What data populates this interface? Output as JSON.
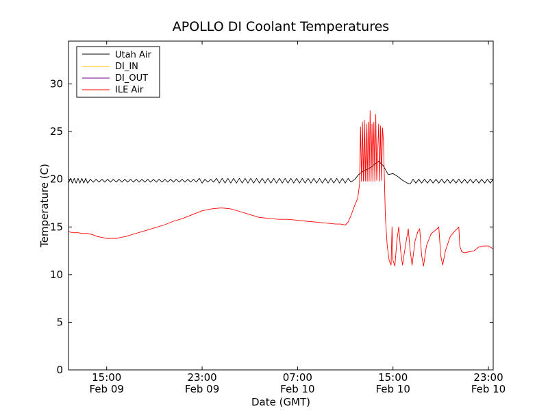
{
  "chart_data": {
    "type": "line",
    "title": "APOLLO DI Coolant Temperatures",
    "xlabel": "Date (GMT)",
    "ylabel": "Temperature (C)",
    "x_unit": "hours since Feb 09 11:00 GMT",
    "xlim": [
      0,
      44.5
    ],
    "ylim": [
      0,
      34.5
    ],
    "y_ticks": [
      0,
      5,
      10,
      15,
      20,
      25,
      30
    ],
    "x_ticks": [
      {
        "x": 4,
        "time": "15:00",
        "date": "Feb 09"
      },
      {
        "x": 14,
        "time": "23:00",
        "date": "Feb 09"
      },
      {
        "x": 24,
        "time": "07:00",
        "date": "Feb 10"
      },
      {
        "x": 34,
        "time": "15:00",
        "date": "Feb 10"
      },
      {
        "x": 44,
        "time": "23:00",
        "date": "Feb 10"
      }
    ],
    "legend_position": "top-left",
    "series": [
      {
        "name": "Utah Air",
        "color": "#000000",
        "points": [
          [
            0,
            19.6
          ],
          [
            0.2,
            20.1
          ],
          [
            0.4,
            19.6
          ],
          [
            0.6,
            20.1
          ],
          [
            0.8,
            19.6
          ],
          [
            1.0,
            20.1
          ],
          [
            1.2,
            19.6
          ],
          [
            1.4,
            20.1
          ],
          [
            1.6,
            19.6
          ],
          [
            1.8,
            20.1
          ],
          [
            2.0,
            19.6
          ],
          [
            2.3,
            20.0
          ],
          [
            2.6,
            19.7
          ],
          [
            2.9,
            20.0
          ],
          [
            3.2,
            19.7
          ],
          [
            3.5,
            20.0
          ],
          [
            3.8,
            19.7
          ],
          [
            4.1,
            20.0
          ],
          [
            4.4,
            19.7
          ],
          [
            4.7,
            20.0
          ],
          [
            5.0,
            19.7
          ],
          [
            5.3,
            20.0
          ],
          [
            5.6,
            19.7
          ],
          [
            5.9,
            20.0
          ],
          [
            6.2,
            19.7
          ],
          [
            6.5,
            20.0
          ],
          [
            6.8,
            19.7
          ],
          [
            7.1,
            20.0
          ],
          [
            7.4,
            19.7
          ],
          [
            7.7,
            20.0
          ],
          [
            8.0,
            19.7
          ],
          [
            8.3,
            20.0
          ],
          [
            8.6,
            19.7
          ],
          [
            8.9,
            20.0
          ],
          [
            9.2,
            19.7
          ],
          [
            9.5,
            20.0
          ],
          [
            9.8,
            19.7
          ],
          [
            10.1,
            20.0
          ],
          [
            10.4,
            19.7
          ],
          [
            10.7,
            20.0
          ],
          [
            11.0,
            19.7
          ],
          [
            11.3,
            20.0
          ],
          [
            11.6,
            19.7
          ],
          [
            11.9,
            20.0
          ],
          [
            12.2,
            19.7
          ],
          [
            12.5,
            20.0
          ],
          [
            12.8,
            19.7
          ],
          [
            13.1,
            20.0
          ],
          [
            13.4,
            19.7
          ],
          [
            13.7,
            20.1
          ],
          [
            14.0,
            19.6
          ],
          [
            14.3,
            20.0
          ],
          [
            14.6,
            19.7
          ],
          [
            14.9,
            20.0
          ],
          [
            15.2,
            19.7
          ],
          [
            15.5,
            20.1
          ],
          [
            15.8,
            19.6
          ],
          [
            16.1,
            20.1
          ],
          [
            16.4,
            19.6
          ],
          [
            16.7,
            20.1
          ],
          [
            17.0,
            19.6
          ],
          [
            17.3,
            20.1
          ],
          [
            17.6,
            19.6
          ],
          [
            17.9,
            20.1
          ],
          [
            18.2,
            19.6
          ],
          [
            18.5,
            20.1
          ],
          [
            18.8,
            19.6
          ],
          [
            19.1,
            20.1
          ],
          [
            19.4,
            19.6
          ],
          [
            19.7,
            20.1
          ],
          [
            20.0,
            19.6
          ],
          [
            20.3,
            20.1
          ],
          [
            20.6,
            19.6
          ],
          [
            20.9,
            20.1
          ],
          [
            21.2,
            19.6
          ],
          [
            21.5,
            20.1
          ],
          [
            21.8,
            19.6
          ],
          [
            22.1,
            20.1
          ],
          [
            22.4,
            19.6
          ],
          [
            22.7,
            20.1
          ],
          [
            23.0,
            19.6
          ],
          [
            23.3,
            20.1
          ],
          [
            23.6,
            19.6
          ],
          [
            23.9,
            20.1
          ],
          [
            24.2,
            19.6
          ],
          [
            24.5,
            20.1
          ],
          [
            24.8,
            19.6
          ],
          [
            25.1,
            20.1
          ],
          [
            25.4,
            19.6
          ],
          [
            25.7,
            20.1
          ],
          [
            26.0,
            19.6
          ],
          [
            26.3,
            20.1
          ],
          [
            26.6,
            19.6
          ],
          [
            26.9,
            20.1
          ],
          [
            27.2,
            19.6
          ],
          [
            27.5,
            20.1
          ],
          [
            27.8,
            19.6
          ],
          [
            28.1,
            20.1
          ],
          [
            28.4,
            19.6
          ],
          [
            28.7,
            20.1
          ],
          [
            29.0,
            19.6
          ],
          [
            29.3,
            20.1
          ],
          [
            29.6,
            19.7
          ],
          [
            30.0,
            20.0
          ],
          [
            30.4,
            20.5
          ],
          [
            30.8,
            20.8
          ],
          [
            31.2,
            21.0
          ],
          [
            31.6,
            21.2
          ],
          [
            32.0,
            21.5
          ],
          [
            32.5,
            21.9
          ],
          [
            33.0,
            21.4
          ],
          [
            33.5,
            20.5
          ],
          [
            34.0,
            20.6
          ],
          [
            34.5,
            20.3
          ],
          [
            35.0,
            19.9
          ],
          [
            35.5,
            19.6
          ],
          [
            35.8,
            19.5
          ],
          [
            36.1,
            20.0
          ],
          [
            36.4,
            19.6
          ],
          [
            36.7,
            20.0
          ],
          [
            37.0,
            19.6
          ],
          [
            37.3,
            20.0
          ],
          [
            37.6,
            19.6
          ],
          [
            37.9,
            20.0
          ],
          [
            38.2,
            19.6
          ],
          [
            38.5,
            20.0
          ],
          [
            38.8,
            19.6
          ],
          [
            39.1,
            20.0
          ],
          [
            39.4,
            19.6
          ],
          [
            39.7,
            20.0
          ],
          [
            40.0,
            19.6
          ],
          [
            40.3,
            20.0
          ],
          [
            40.6,
            19.6
          ],
          [
            40.9,
            20.0
          ],
          [
            41.2,
            19.6
          ],
          [
            41.5,
            20.0
          ],
          [
            41.8,
            19.6
          ],
          [
            42.1,
            20.0
          ],
          [
            42.4,
            19.6
          ],
          [
            42.7,
            20.0
          ],
          [
            43.0,
            19.6
          ],
          [
            43.3,
            20.0
          ],
          [
            43.6,
            19.6
          ],
          [
            43.9,
            20.0
          ],
          [
            44.2,
            19.6
          ],
          [
            44.5,
            20.0
          ]
        ]
      },
      {
        "name": "DI_IN",
        "color": "#ffbf00",
        "points": []
      },
      {
        "name": "DI_OUT",
        "color": "#6a0080",
        "points": []
      },
      {
        "name": "ILE Air",
        "color": "#ff0000",
        "points": [
          [
            0,
            14.5
          ],
          [
            0.5,
            14.4
          ],
          [
            1,
            14.4
          ],
          [
            1.5,
            14.3
          ],
          [
            2,
            14.3
          ],
          [
            2.5,
            14.2
          ],
          [
            3,
            14.0
          ],
          [
            3.5,
            13.9
          ],
          [
            4,
            13.8
          ],
          [
            4.5,
            13.8
          ],
          [
            5,
            13.8
          ],
          [
            5.5,
            13.9
          ],
          [
            6,
            14.0
          ],
          [
            7,
            14.3
          ],
          [
            8,
            14.6
          ],
          [
            9,
            14.9
          ],
          [
            10,
            15.2
          ],
          [
            11,
            15.6
          ],
          [
            12,
            15.9
          ],
          [
            13,
            16.3
          ],
          [
            14,
            16.7
          ],
          [
            15,
            16.9
          ],
          [
            16,
            17.0
          ],
          [
            17,
            16.9
          ],
          [
            18,
            16.6
          ],
          [
            19,
            16.3
          ],
          [
            20,
            16.0
          ],
          [
            21,
            15.9
          ],
          [
            22,
            15.8
          ],
          [
            23,
            15.8
          ],
          [
            24,
            15.7
          ],
          [
            25,
            15.6
          ],
          [
            26,
            15.5
          ],
          [
            27,
            15.4
          ],
          [
            28,
            15.3
          ],
          [
            28.5,
            15.3
          ],
          [
            29,
            15.2
          ],
          [
            29.3,
            15.5
          ],
          [
            29.6,
            16.2
          ],
          [
            30.0,
            17.3
          ],
          [
            30.3,
            18.0
          ],
          [
            30.5,
            19.5
          ],
          [
            30.6,
            25.5
          ],
          [
            30.7,
            19.8
          ],
          [
            30.8,
            26.0
          ],
          [
            30.9,
            19.8
          ],
          [
            31.0,
            26.2
          ],
          [
            31.1,
            19.8
          ],
          [
            31.2,
            25.8
          ],
          [
            31.3,
            19.8
          ],
          [
            31.4,
            26.0
          ],
          [
            31.5,
            19.8
          ],
          [
            31.6,
            27.2
          ],
          [
            31.7,
            19.8
          ],
          [
            31.8,
            25.8
          ],
          [
            31.9,
            19.8
          ],
          [
            32.0,
            26.0
          ],
          [
            32.1,
            19.8
          ],
          [
            32.2,
            26.8
          ],
          [
            32.3,
            19.9
          ],
          [
            32.5,
            25.8
          ],
          [
            32.6,
            19.8
          ],
          [
            32.7,
            25.6
          ],
          [
            32.8,
            19.9
          ],
          [
            32.9,
            25.4
          ],
          [
            33.0,
            24.0
          ],
          [
            33.2,
            16.0
          ],
          [
            33.4,
            13.0
          ],
          [
            33.6,
            11.5
          ],
          [
            33.8,
            11.0
          ],
          [
            33.9,
            15.0
          ],
          [
            34.0,
            11.5
          ],
          [
            34.2,
            10.9
          ],
          [
            34.4,
            13.5
          ],
          [
            34.6,
            15.0
          ],
          [
            34.8,
            12.5
          ],
          [
            35.0,
            11.0
          ],
          [
            35.3,
            13.0
          ],
          [
            35.6,
            14.8
          ],
          [
            35.8,
            12.5
          ],
          [
            36.0,
            11.0
          ],
          [
            36.3,
            13.5
          ],
          [
            36.6,
            14.5
          ],
          [
            36.8,
            14.8
          ],
          [
            37.0,
            12.0
          ],
          [
            37.2,
            10.9
          ],
          [
            37.5,
            13.0
          ],
          [
            38.0,
            14.3
          ],
          [
            38.5,
            14.7
          ],
          [
            38.8,
            15.0
          ],
          [
            39.0,
            12.0
          ],
          [
            39.2,
            11.0
          ],
          [
            39.5,
            12.5
          ],
          [
            40.0,
            14.0
          ],
          [
            40.5,
            14.6
          ],
          [
            40.9,
            15.0
          ],
          [
            41.0,
            13.0
          ],
          [
            41.2,
            12.4
          ],
          [
            41.5,
            12.3
          ],
          [
            42,
            12.4
          ],
          [
            42.5,
            12.5
          ],
          [
            43,
            12.9
          ],
          [
            43.5,
            13.0
          ],
          [
            44,
            13.0
          ],
          [
            44.5,
            12.7
          ]
        ]
      }
    ]
  }
}
